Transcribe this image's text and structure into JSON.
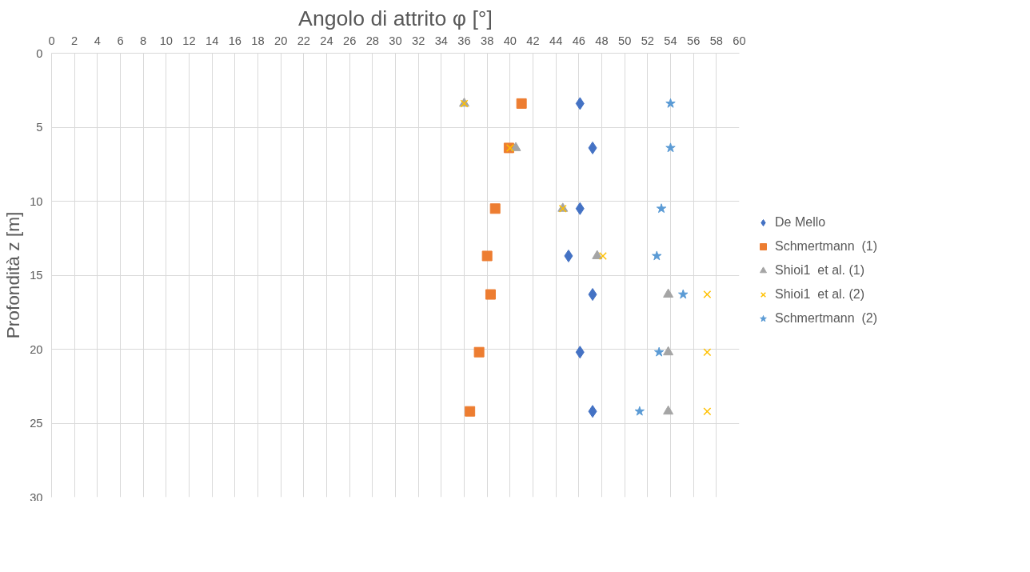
{
  "chart_data": {
    "type": "scatter",
    "title": "Angolo di attrito φ [°]",
    "ylabel": "Profondità z [m]",
    "xlim": [
      0,
      60
    ],
    "xticks": [
      0,
      2,
      4,
      6,
      8,
      10,
      12,
      14,
      16,
      18,
      20,
      22,
      24,
      26,
      28,
      30,
      32,
      34,
      36,
      38,
      40,
      42,
      44,
      46,
      48,
      50,
      52,
      54,
      56,
      58,
      60
    ],
    "ylim": [
      30,
      0
    ],
    "yticks": [
      0,
      5,
      10,
      15,
      20,
      25,
      30
    ],
    "grid": true,
    "legend": "right",
    "series": [
      {
        "name": "De Mello",
        "color": "#4472c4",
        "marker": "diamond",
        "x": [
          46.1,
          47.2,
          46.1,
          45.1,
          47.2,
          46.1,
          47.2
        ],
        "values": [
          3.4,
          6.4,
          10.5,
          13.7,
          16.3,
          20.2,
          24.2
        ]
      },
      {
        "name": "Schmertmann  (1)",
        "color": "#ed7d31",
        "marker": "square",
        "x": [
          41.0,
          39.9,
          38.7,
          38.0,
          38.3,
          37.3,
          36.5
        ],
        "values": [
          3.4,
          6.4,
          10.5,
          13.7,
          16.3,
          20.2,
          24.2
        ]
      },
      {
        "name": "Shioi1  et al. (1)",
        "color": "#a5a5a5",
        "marker": "triangle",
        "x": [
          36.0,
          40.5,
          44.6,
          47.6,
          53.8,
          53.8,
          53.8
        ],
        "values": [
          3.4,
          6.4,
          10.5,
          13.7,
          16.3,
          20.2,
          24.2
        ]
      },
      {
        "name": "Shioi1  et al. (2)",
        "color": "#ffc000",
        "marker": "cross",
        "x": [
          36.0,
          40.0,
          44.6,
          48.1,
          57.2,
          57.2,
          57.2
        ],
        "values": [
          3.4,
          6.4,
          10.5,
          13.7,
          16.3,
          20.2,
          24.2
        ]
      },
      {
        "name": "Schmertmann  (2)",
        "color": "#5b9bd5",
        "marker": "star",
        "x": [
          54.0,
          54.0,
          53.2,
          52.8,
          55.1,
          53.0,
          51.3
        ],
        "values": [
          3.4,
          6.4,
          10.5,
          13.7,
          16.3,
          20.2,
          24.2
        ]
      }
    ]
  }
}
